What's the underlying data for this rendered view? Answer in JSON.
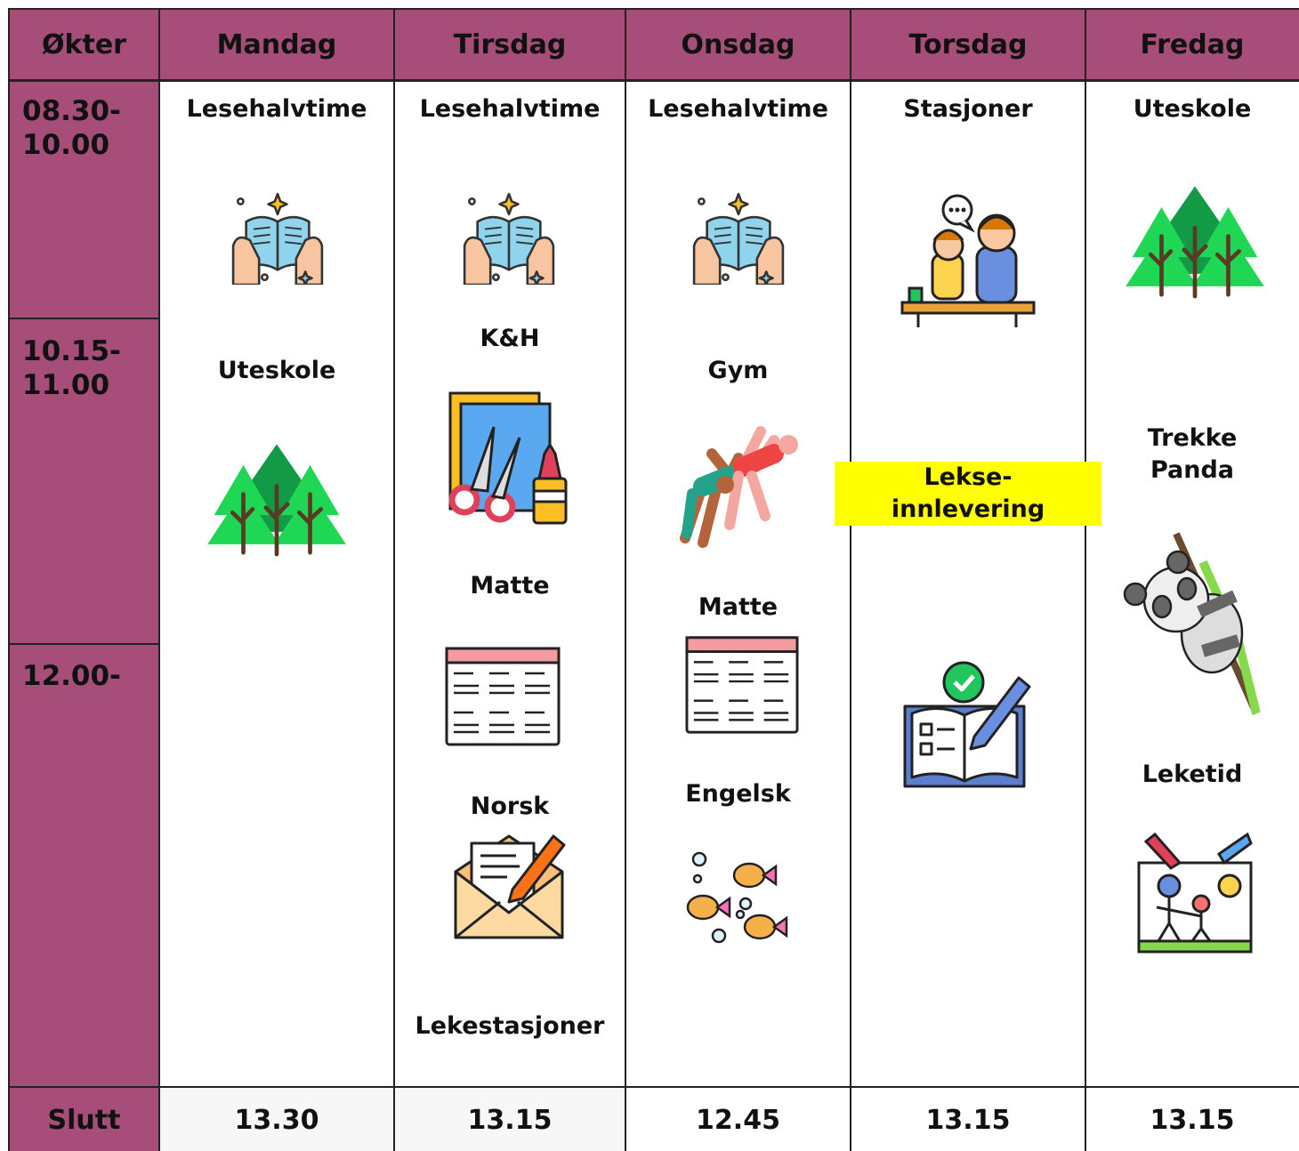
{
  "header": {
    "columns": [
      "Økter",
      "Mandag",
      "Tirsdag",
      "Onsdag",
      "Torsdag",
      "Fredag"
    ]
  },
  "sessions": [
    [
      "08.30-",
      "10.00"
    ],
    [
      "10.15-",
      "11.00"
    ],
    [
      "12.00-"
    ]
  ],
  "days": [
    {
      "activities": [
        [
          "Lesehalvtime"
        ],
        [
          "Uteskole"
        ]
      ]
    },
    {
      "activities": [
        [
          "Lesehalvtime"
        ],
        [
          "K&H"
        ],
        [
          "Matte"
        ],
        [
          "Norsk"
        ],
        [
          "Lekestasjoner"
        ]
      ]
    },
    {
      "activities": [
        [
          "Lesehalvtime"
        ],
        [
          "Gym"
        ],
        [
          "Matte"
        ],
        [
          "Engelsk"
        ]
      ]
    },
    {
      "activities": [
        [
          "Stasjoner"
        ],
        [
          "Lekse-",
          "innlevering"
        ]
      ]
    },
    {
      "activities": [
        [
          "Uteskole"
        ],
        [
          "Trekke",
          "Panda"
        ],
        [
          "Leketid"
        ]
      ]
    }
  ],
  "footer": {
    "label": "Slutt",
    "end_times": [
      "13.30",
      "13.15",
      "12.45",
      "13.15",
      "13.15"
    ]
  }
}
